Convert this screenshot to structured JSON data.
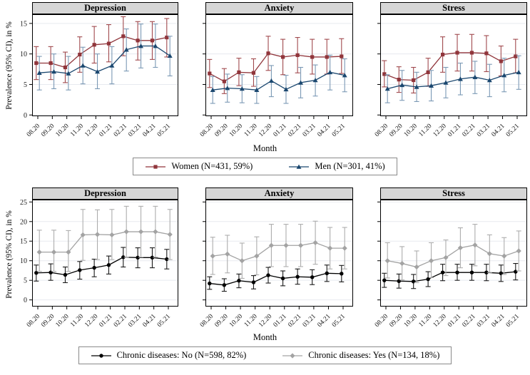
{
  "chart_data": [
    {
      "figure": "prevalence_by_sex",
      "type": "line",
      "title": "",
      "ylabel": "Prevalence (95% CI), in %",
      "xlabel": "Month",
      "ylim": [
        -0.2,
        16.5
      ],
      "yticks": [
        0,
        5,
        10,
        15
      ],
      "grid": true,
      "legend_position": "bottom",
      "categories": [
        "08.20",
        "09.20",
        "10.20",
        "11.20",
        "12.20",
        "01.21",
        "02.21",
        "03.21",
        "04.21",
        "05.21"
      ],
      "legend": [
        {
          "label": "Women (N=431, 59%)",
          "marker": "square",
          "color": "#90353B",
          "err_color": "#A0494D"
        },
        {
          "label": "Men (N=301, 41%)",
          "marker": "triangle",
          "color": "#1A476F",
          "err_color": "#7B99B5"
        }
      ],
      "panels": [
        {
          "title": "Depression",
          "series": [
            {
              "name": "Women",
              "values": [
                8.5,
                8.5,
                7.8,
                9.9,
                11.5,
                11.7,
                12.9,
                12.2,
                12.2,
                12.7
              ],
              "ci_low": [
                5.8,
                5.8,
                5.3,
                7.0,
                8.5,
                8.7,
                9.7,
                9.0,
                9.1,
                9.5
              ],
              "ci_high": [
                11.2,
                11.2,
                10.3,
                12.8,
                14.5,
                14.8,
                16.1,
                15.3,
                15.3,
                15.8
              ]
            },
            {
              "name": "Men",
              "values": [
                6.9,
                7.1,
                6.8,
                8.1,
                7.1,
                8.1,
                10.7,
                11.3,
                11.3,
                9.7
              ],
              "ci_low": [
                4.1,
                4.3,
                4.1,
                5.1,
                4.3,
                5.1,
                7.2,
                7.7,
                7.8,
                6.4
              ],
              "ci_high": [
                9.6,
                10.0,
                9.6,
                11.1,
                10.0,
                11.2,
                14.1,
                14.9,
                14.9,
                12.9
              ]
            }
          ]
        },
        {
          "title": "Anxiety",
          "series": [
            {
              "name": "Women",
              "values": [
                6.8,
                5.5,
                7.0,
                6.9,
                10.1,
                9.5,
                9.8,
                9.5,
                9.5,
                9.6
              ],
              "ci_low": [
                4.5,
                3.5,
                4.8,
                4.7,
                7.3,
                6.6,
                6.9,
                6.7,
                6.7,
                6.8
              ],
              "ci_high": [
                9.1,
                7.6,
                9.3,
                9.2,
                12.9,
                12.4,
                12.7,
                12.4,
                12.4,
                12.5
              ]
            },
            {
              "name": "Men",
              "values": [
                4.1,
                4.4,
                4.3,
                4.1,
                5.6,
                4.2,
                5.3,
                5.7,
                7.0,
                6.5
              ],
              "ci_low": [
                1.9,
                2.1,
                2.0,
                1.9,
                3.0,
                1.9,
                2.8,
                3.1,
                4.1,
                3.8
              ],
              "ci_high": [
                6.3,
                6.7,
                6.6,
                6.3,
                8.1,
                6.5,
                7.8,
                8.2,
                9.8,
                9.2
              ]
            }
          ]
        },
        {
          "title": "Stress",
          "series": [
            {
              "name": "Women",
              "values": [
                6.7,
                5.8,
                5.7,
                7.0,
                9.9,
                10.2,
                10.2,
                10.1,
                8.8,
                9.6
              ],
              "ci_low": [
                4.6,
                3.7,
                3.6,
                4.7,
                7.0,
                7.2,
                7.2,
                7.1,
                6.4,
                6.9
              ],
              "ci_high": [
                8.9,
                7.9,
                7.8,
                9.3,
                12.8,
                13.2,
                13.2,
                13.0,
                11.3,
                12.4
              ]
            },
            {
              "name": "Men",
              "values": [
                4.3,
                4.9,
                4.6,
                4.8,
                5.3,
                5.9,
                6.2,
                5.7,
                6.5,
                7.0
              ],
              "ci_low": [
                2.0,
                2.4,
                2.2,
                2.3,
                2.8,
                3.3,
                3.5,
                3.0,
                3.8,
                4.2
              ],
              "ci_high": [
                6.6,
                7.3,
                7.0,
                7.3,
                7.8,
                8.5,
                8.8,
                8.3,
                9.3,
                9.7
              ]
            }
          ]
        }
      ]
    },
    {
      "figure": "prevalence_by_chronic_disease",
      "type": "line",
      "title": "",
      "ylabel": "Prevalence (95% CI), in %",
      "xlabel": "Month",
      "ylim": [
        -1.7,
        25.6
      ],
      "yticks": [
        0,
        5,
        10,
        15,
        20,
        25
      ],
      "grid": true,
      "legend_position": "bottom",
      "categories": [
        "08.20",
        "09.20",
        "10.20",
        "11.20",
        "12.20",
        "01.21",
        "02.21",
        "03.21",
        "04.21",
        "05.21"
      ],
      "legend": [
        {
          "label": "Chronic diseases: No (N=598, 82%)",
          "marker": "circle",
          "color": "#000000",
          "err_color": "#1A1A1A"
        },
        {
          "label": "Chronic diseases: Yes (N=134, 18%)",
          "marker": "diamond",
          "color": "#A3A3A3",
          "err_color": "#ADADAD"
        }
      ],
      "panels": [
        {
          "title": "Depression",
          "series": [
            {
              "name": "Chronic diseases: No",
              "values": [
                6.9,
                7.0,
                6.4,
                7.6,
                8.2,
                8.9,
                10.9,
                10.8,
                10.8,
                10.4
              ],
              "ci_low": [
                4.8,
                5.0,
                4.4,
                5.3,
                5.9,
                6.6,
                8.4,
                8.2,
                8.2,
                7.9
              ],
              "ci_high": [
                8.9,
                9.2,
                8.4,
                9.8,
                10.4,
                11.2,
                13.4,
                13.3,
                13.3,
                12.9
              ]
            },
            {
              "name": "Chronic diseases: Yes",
              "values": [
                12.2,
                12.2,
                12.2,
                16.6,
                16.7,
                16.6,
                17.4,
                17.4,
                17.4,
                16.7
              ],
              "ci_low": [
                7.3,
                7.3,
                7.3,
                10.1,
                10.3,
                10.3,
                10.9,
                10.9,
                10.9,
                10.3
              ],
              "ci_high": [
                17.8,
                17.8,
                17.7,
                23.1,
                23.0,
                23.1,
                23.9,
                23.9,
                23.9,
                23.1
              ]
            }
          ]
        },
        {
          "title": "Anxiety",
          "series": [
            {
              "name": "Chronic diseases: No",
              "values": [
                4.2,
                3.8,
                4.9,
                4.5,
                6.3,
                5.5,
                5.9,
                5.8,
                6.8,
                6.7
              ],
              "ci_low": [
                2.7,
                2.2,
                3.1,
                2.8,
                4.3,
                3.6,
                4.0,
                3.9,
                4.7,
                4.6
              ],
              "ci_high": [
                5.9,
                5.4,
                6.6,
                6.2,
                8.3,
                7.4,
                7.9,
                7.7,
                8.9,
                8.8
              ]
            },
            {
              "name": "Chronic diseases: Yes",
              "values": [
                11.2,
                11.7,
                10.0,
                11.2,
                13.9,
                13.9,
                13.9,
                14.6,
                13.2,
                13.2
              ],
              "ci_low": [
                6.5,
                6.9,
                5.5,
                6.4,
                8.5,
                8.5,
                8.5,
                9.1,
                7.9,
                7.9
              ],
              "ci_high": [
                16.0,
                16.5,
                14.5,
                16.1,
                19.3,
                19.3,
                19.3,
                20.1,
                18.5,
                18.5
              ]
            }
          ]
        },
        {
          "title": "Stress",
          "series": [
            {
              "name": "Chronic diseases: No",
              "values": [
                5.0,
                4.8,
                4.7,
                5.3,
                7.0,
                7.0,
                7.0,
                7.0,
                6.8,
                7.2
              ],
              "ci_low": [
                3.2,
                3.0,
                2.9,
                3.4,
                4.9,
                5.0,
                5.0,
                4.9,
                4.7,
                5.1
              ],
              "ci_high": [
                6.8,
                6.6,
                6.5,
                7.2,
                9.1,
                9.1,
                9.1,
                9.1,
                8.9,
                9.3
              ]
            },
            {
              "name": "Chronic diseases: Yes",
              "values": [
                10.0,
                9.3,
                8.4,
                10.0,
                10.8,
                13.3,
                14.0,
                11.8,
                11.2,
                12.5
              ],
              "ci_low": [
                5.6,
                5.1,
                4.4,
                5.7,
                6.2,
                8.2,
                8.7,
                7.0,
                6.5,
                7.4
              ],
              "ci_high": [
                14.6,
                13.6,
                12.5,
                14.6,
                15.3,
                18.4,
                19.3,
                16.6,
                15.9,
                17.6
              ]
            }
          ]
        }
      ]
    }
  ],
  "style_colors": {
    "panel_header_bg": "#d6d6d6",
    "gridline": "#e7eaef",
    "axis": "#000000"
  }
}
